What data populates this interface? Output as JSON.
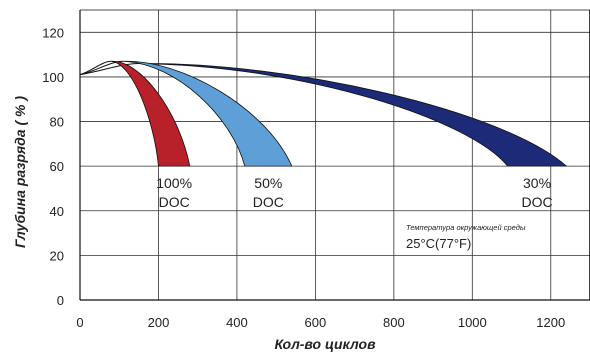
{
  "chart_data": {
    "type": "area",
    "xlabel": "Кол-во циклов",
    "ylabel": "Глубина разряда ( % )",
    "xlim": [
      0,
      1300
    ],
    "ylim": [
      0,
      130
    ],
    "x_ticks": [
      0,
      200,
      400,
      600,
      800,
      1000,
      1200
    ],
    "y_ticks": [
      0,
      20,
      40,
      60,
      80,
      100,
      120
    ],
    "grid": true,
    "series": [
      {
        "label_lines": [
          "100%",
          "DOC"
        ],
        "color": "#b8202a",
        "start": [
          0,
          101
        ],
        "peak": [
          80,
          107
        ],
        "end_range": [
          200,
          280
        ],
        "end_y": 60
      },
      {
        "label_lines": [
          "50%",
          "DOC"
        ],
        "color": "#5d9fd6",
        "start": [
          0,
          101
        ],
        "peak": [
          110,
          107
        ],
        "end_range": [
          420,
          540
        ],
        "end_y": 60
      },
      {
        "label_lines": [
          "30%",
          "DOC"
        ],
        "color": "#1d2a78",
        "start": [
          0,
          101
        ],
        "peak": [
          150,
          106
        ],
        "end_range": [
          1090,
          1240
        ],
        "end_y": 60
      }
    ],
    "annotation": {
      "small_text": "Температура окружающей среды",
      "temperature": "25°C(77°F)"
    }
  }
}
